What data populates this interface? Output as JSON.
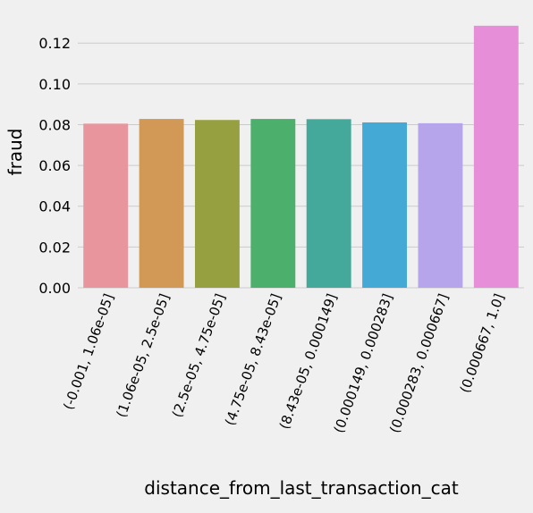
{
  "chart_data": {
    "type": "bar",
    "title": "",
    "xlabel": "distance_from_last_transaction_cat",
    "ylabel": "fraud",
    "ylim": [
      0,
      0.135
    ],
    "yticks": [
      "0.00",
      "0.02",
      "0.04",
      "0.06",
      "0.08",
      "0.10",
      "0.12"
    ],
    "grid": true,
    "categories": [
      "(-0.001, 1.06e-05]",
      "(1.06e-05, 2.5e-05]",
      "(2.5e-05, 4.75e-05]",
      "(4.75e-05, 8.43e-05]",
      "(8.43e-05, 0.000149]",
      "(0.000149, 0.000283]",
      "(0.000283, 0.000667]",
      "(0.000667, 1.0]"
    ],
    "values": [
      0.0805,
      0.0828,
      0.0823,
      0.0828,
      0.0827,
      0.0811,
      0.0807,
      0.1285
    ],
    "colors": [
      "#e8959e",
      "#d29856",
      "#97a040",
      "#4caf6c",
      "#44a89a",
      "#45a9d6",
      "#b7a5ec",
      "#e68ed8"
    ]
  }
}
